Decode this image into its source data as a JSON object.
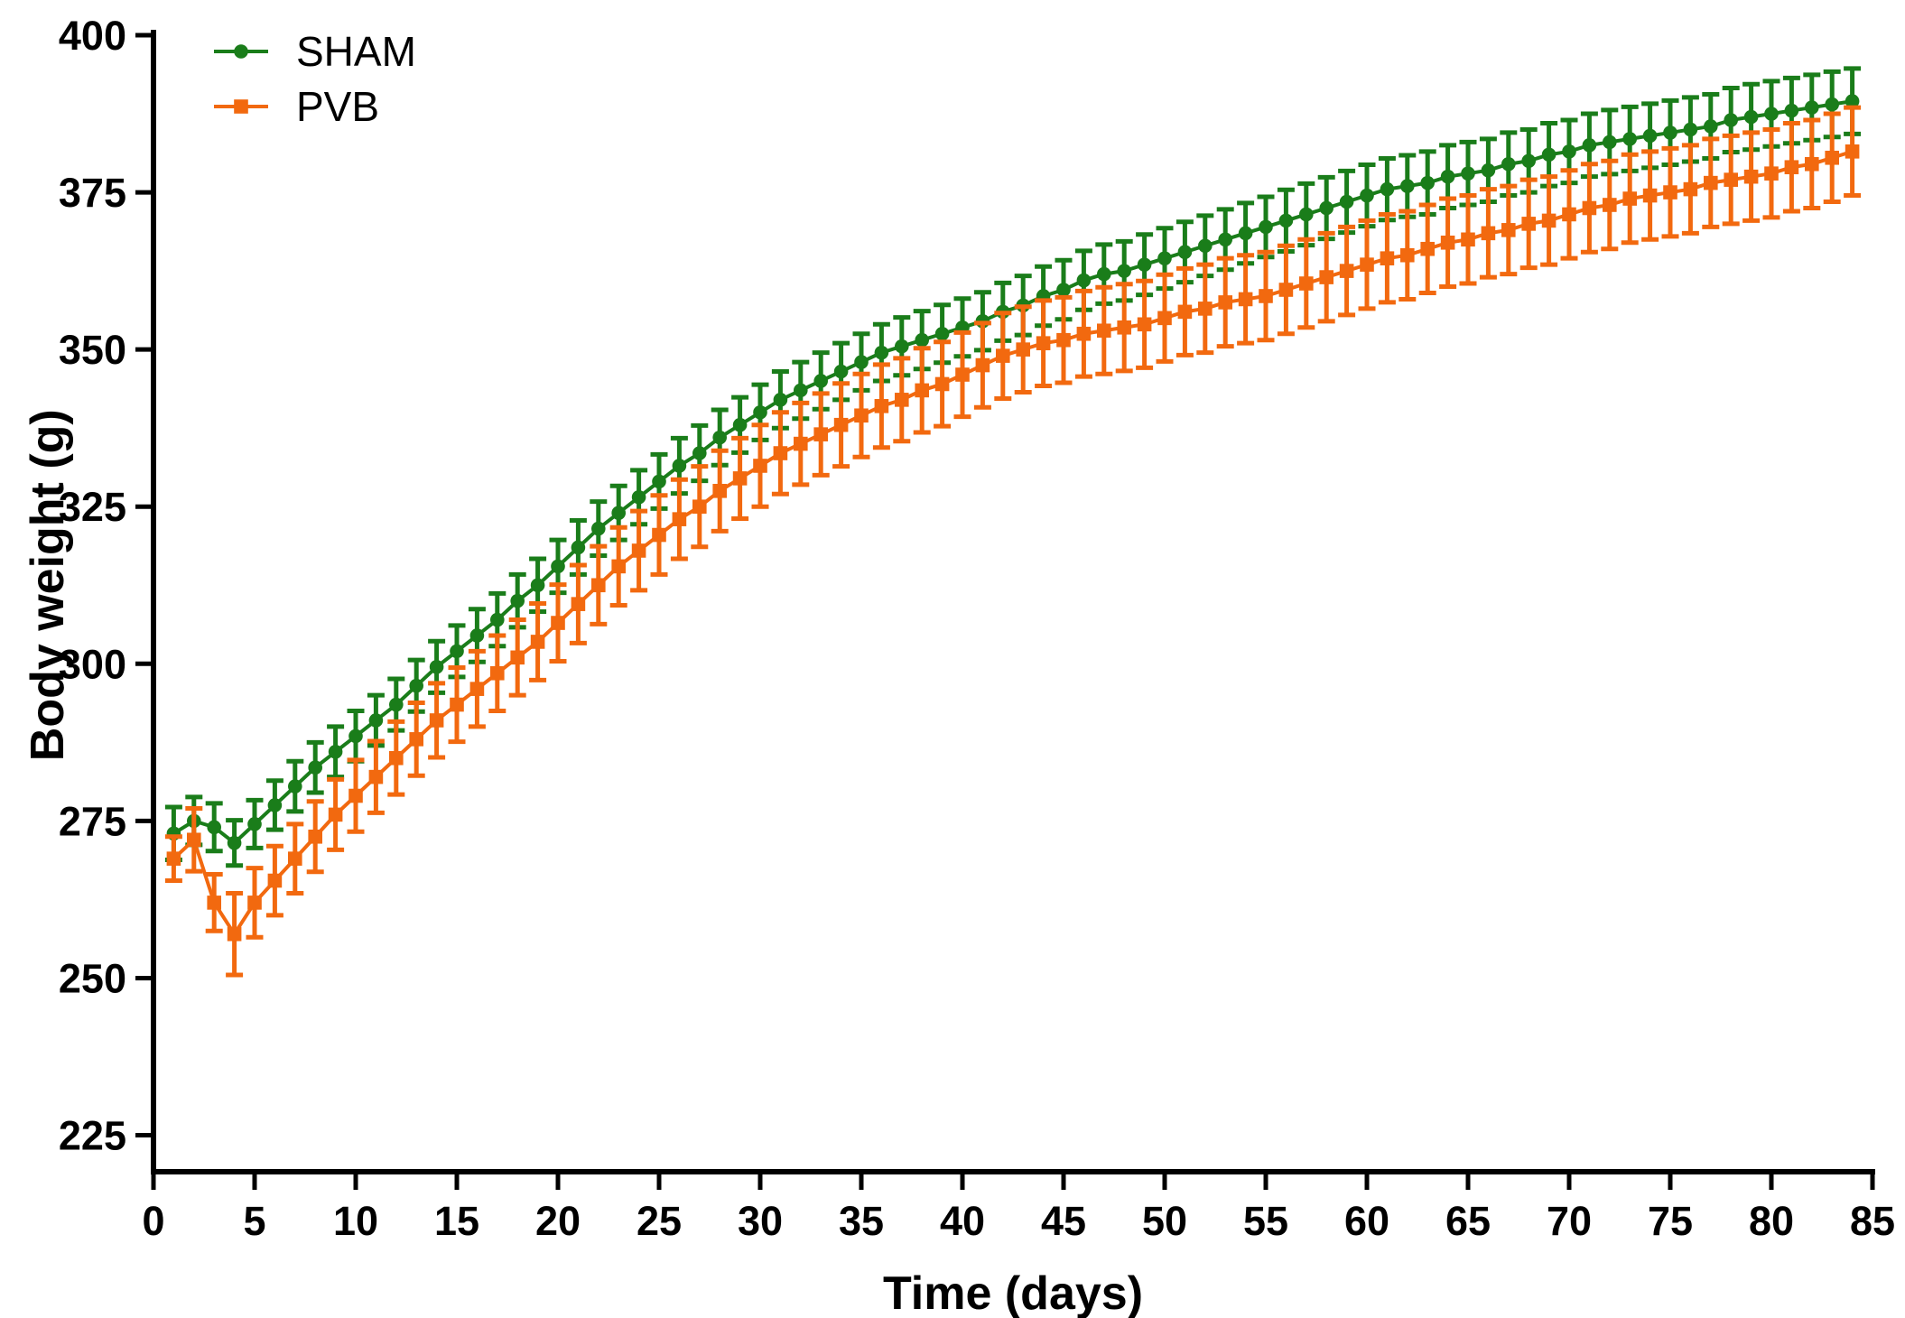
{
  "figure": {
    "background_color": "#ffffff",
    "kind": "scientific line chart with symmetric error bars (mean ± SEM)"
  },
  "legend": {
    "position": "top-left-inside",
    "items": [
      {
        "label": "SHAM",
        "marker": "circle",
        "color": "#1a7d1a"
      },
      {
        "label": "PVB",
        "marker": "square",
        "color": "#f2690f"
      }
    ]
  },
  "chart_data": {
    "type": "line",
    "title": "",
    "xlabel": "Time (days)",
    "ylabel": "Body weight (g)",
    "xlim": [
      0,
      85
    ],
    "ylim": [
      225,
      400
    ],
    "x_ticks": [
      0,
      5,
      10,
      15,
      20,
      25,
      30,
      35,
      40,
      45,
      50,
      55,
      60,
      65,
      70,
      75,
      80,
      85
    ],
    "y_ticks": [
      400,
      375,
      350,
      325,
      300,
      275,
      250,
      225
    ],
    "grid": false,
    "legend_position": "top-left inside plot",
    "error_bars": "vertical, capped, ± SEM",
    "x": [
      1,
      2,
      3,
      4,
      5,
      6,
      7,
      8,
      9,
      10,
      11,
      12,
      13,
      14,
      15,
      16,
      17,
      18,
      19,
      20,
      21,
      22,
      23,
      24,
      25,
      26,
      27,
      28,
      29,
      30,
      31,
      32,
      33,
      34,
      35,
      36,
      37,
      38,
      39,
      40,
      41,
      42,
      43,
      44,
      45,
      46,
      47,
      48,
      49,
      50,
      51,
      52,
      53,
      54,
      55,
      56,
      57,
      58,
      59,
      60,
      61,
      62,
      63,
      64,
      65,
      66,
      67,
      68,
      69,
      70,
      71,
      72,
      73,
      74,
      75,
      76,
      77,
      78,
      79,
      80,
      81,
      82,
      83,
      84
    ],
    "series": [
      {
        "name": "SHAM",
        "color": "#1a7d1a",
        "marker": "circle",
        "values": [
          273,
          275,
          274,
          271.5,
          274.5,
          277.5,
          280.5,
          283.5,
          286,
          288.5,
          291,
          293.5,
          296.5,
          299.5,
          302,
          304.5,
          307,
          310,
          312.5,
          315.5,
          318.5,
          321.5,
          324,
          326.5,
          329,
          331.5,
          333.5,
          336,
          338,
          340,
          342,
          343.5,
          345,
          346.5,
          348,
          349.5,
          350.5,
          351.5,
          352.5,
          353.5,
          354.5,
          356,
          357,
          358.5,
          359.5,
          361,
          362,
          362.5,
          363.5,
          364.5,
          365.5,
          366.5,
          367.5,
          368.5,
          369.5,
          370.5,
          371.5,
          372.5,
          373.5,
          374.5,
          375.5,
          376,
          376.5,
          377.5,
          378,
          378.5,
          379.5,
          380,
          381,
          381.5,
          382.5,
          383,
          383.5,
          384,
          384.5,
          385,
          385.5,
          386.5,
          387,
          387.5,
          388,
          388.5,
          389,
          389.5
        ],
        "sem": [
          4.2,
          3.8,
          3.8,
          3.6,
          3.8,
          3.9,
          4.0,
          4.0,
          4.0,
          4.0,
          4.0,
          4.1,
          4.1,
          4.1,
          4.1,
          4.2,
          4.2,
          4.2,
          4.2,
          4.2,
          4.3,
          4.3,
          4.3,
          4.3,
          4.3,
          4.4,
          4.4,
          4.4,
          4.4,
          4.4,
          4.5,
          4.5,
          4.5,
          4.5,
          4.5,
          4.5,
          4.6,
          4.6,
          4.6,
          4.6,
          4.6,
          4.6,
          4.7,
          4.7,
          4.7,
          4.7,
          4.7,
          4.7,
          4.8,
          4.8,
          4.8,
          4.8,
          4.8,
          4.8,
          4.8,
          4.9,
          4.9,
          4.9,
          4.9,
          4.9,
          4.9,
          4.9,
          5.0,
          5.0,
          5.0,
          5.0,
          5.0,
          5.0,
          5.0,
          5.0,
          5.0,
          5.1,
          5.1,
          5.1,
          5.1,
          5.1,
          5.1,
          5.1,
          5.2,
          5.2,
          5.2,
          5.2,
          5.2,
          5.2
        ]
      },
      {
        "name": "PVB",
        "color": "#f2690f",
        "marker": "square",
        "values": [
          269,
          272,
          262,
          257,
          262,
          265.5,
          269,
          272.5,
          276,
          279,
          282,
          285,
          288,
          291,
          293.5,
          296,
          298.5,
          301,
          303.5,
          306.5,
          309.5,
          312.5,
          315.5,
          318,
          320.5,
          323,
          325,
          327.5,
          329.5,
          331.5,
          333.5,
          335,
          336.5,
          338,
          339.5,
          341,
          342,
          343.5,
          344.5,
          346,
          347.5,
          349,
          350,
          351,
          351.5,
          352.5,
          353,
          353.5,
          354,
          355,
          356,
          356.5,
          357.5,
          358,
          358.5,
          359.5,
          360.5,
          361.5,
          362.5,
          363.5,
          364.5,
          365,
          366,
          367,
          367.5,
          368.5,
          369,
          370,
          370.5,
          371.5,
          372.5,
          373,
          374,
          374.5,
          375,
          375.5,
          376.5,
          377,
          377.5,
          378,
          379,
          379.5,
          380.5,
          381.5
        ],
        "sem": [
          3.5,
          5.0,
          4.5,
          6.5,
          5.5,
          5.5,
          5.5,
          5.6,
          5.6,
          5.7,
          5.7,
          5.8,
          5.8,
          5.9,
          5.9,
          6.0,
          6.0,
          6.0,
          6.1,
          6.1,
          6.2,
          6.2,
          6.2,
          6.3,
          6.3,
          6.3,
          6.4,
          6.4,
          6.4,
          6.5,
          6.5,
          6.5,
          6.5,
          6.6,
          6.6,
          6.6,
          6.6,
          6.7,
          6.7,
          6.7,
          6.7,
          6.8,
          6.8,
          6.8,
          6.8,
          6.8,
          6.9,
          6.9,
          6.9,
          6.9,
          6.9,
          7.0,
          7.0,
          7.0,
          7.0,
          7.0,
          7.0,
          7.0,
          7.0,
          7.0,
          7.0,
          7.0,
          7.0,
          7.0,
          7.0,
          7.0,
          7.0,
          7.0,
          7.0,
          7.0,
          7.0,
          7.0,
          7.0,
          7.0,
          7.0,
          7.0,
          7.0,
          7.0,
          7.0,
          7.0,
          7.0,
          7.0,
          7.0,
          7.0
        ]
      }
    ]
  }
}
